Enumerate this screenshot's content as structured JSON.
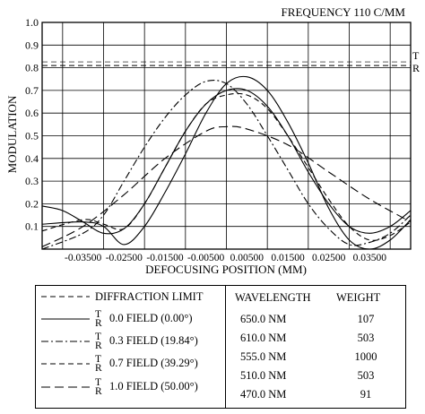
{
  "chart_data": {
    "type": "line",
    "title": "FREQUENCY 110 C/MM",
    "xlabel": "DEFOCUSING POSITION (MM)",
    "ylabel": "MODULATION",
    "xlim": [
      -0.045,
      0.045
    ],
    "ylim": [
      0,
      1.0
    ],
    "yticks": [
      "0.1",
      "0.2",
      "0.3",
      "0.4",
      "0.5",
      "0.6",
      "0.7",
      "0.8",
      "0.9",
      "1.0"
    ],
    "xticks": [
      "-0.03500",
      "-0.02500",
      "-0.01500",
      "-0.00500",
      "0.00500",
      "0.01500",
      "0.02500",
      "0.03500"
    ],
    "diffraction_limit": 0.81,
    "side_labels": [
      "T",
      "R"
    ],
    "series": [
      {
        "name": "0.0 FIELD (0.00°)",
        "style": "solid",
        "x": [
          -0.045,
          -0.035,
          -0.03,
          -0.025,
          -0.02,
          -0.015,
          -0.01,
          -0.005,
          0,
          0.005,
          0.01,
          0.015,
          0.02,
          0.025,
          0.03,
          0.035,
          0.04,
          0.045
        ],
        "y": [
          0.11,
          0.12,
          0.1,
          0.02,
          0.1,
          0.25,
          0.42,
          0.6,
          0.73,
          0.76,
          0.7,
          0.56,
          0.38,
          0.18,
          0.04,
          0.0,
          0.04,
          0.13
        ]
      },
      {
        "name": "0.0 FIELD (0.00°) R",
        "style": "solid",
        "x": [
          -0.045,
          -0.04,
          -0.035,
          -0.03,
          -0.025,
          -0.02,
          -0.015,
          -0.01,
          -0.005,
          0,
          0.005,
          0.01,
          0.015,
          0.02,
          0.025,
          0.03,
          0.035,
          0.04,
          0.045
        ],
        "y": [
          0.19,
          0.17,
          0.12,
          0.07,
          0.09,
          0.2,
          0.36,
          0.52,
          0.64,
          0.7,
          0.7,
          0.63,
          0.5,
          0.34,
          0.2,
          0.1,
          0.07,
          0.1,
          0.17
        ]
      },
      {
        "name": "0.3 FIELD (19.84°)",
        "style": "dashdot",
        "x": [
          -0.045,
          -0.035,
          -0.03,
          -0.025,
          -0.02,
          -0.015,
          -0.01,
          -0.005,
          0,
          0.005,
          0.01,
          0.015,
          0.02,
          0.025,
          0.03,
          0.035,
          0.04,
          0.045
        ],
        "y": [
          0.0,
          0.07,
          0.15,
          0.3,
          0.45,
          0.58,
          0.68,
          0.74,
          0.73,
          0.64,
          0.5,
          0.35,
          0.2,
          0.09,
          0.02,
          0.03,
          0.07,
          0.15
        ]
      },
      {
        "name": "0.7 FIELD (39.29°)",
        "style": "dashed",
        "x": [
          -0.045,
          -0.035,
          -0.03,
          -0.025,
          -0.02,
          -0.015,
          -0.01,
          -0.005,
          0,
          0.005,
          0.01,
          0.015,
          0.02,
          0.025,
          0.03,
          0.035,
          0.04,
          0.045
        ],
        "y": [
          0.08,
          0.13,
          0.11,
          0.09,
          0.2,
          0.36,
          0.52,
          0.64,
          0.68,
          0.68,
          0.62,
          0.5,
          0.36,
          0.22,
          0.1,
          0.04,
          0.06,
          0.12
        ]
      },
      {
        "name": "1.0 FIELD (50.00°)",
        "style": "longdash",
        "x": [
          -0.045,
          -0.035,
          -0.025,
          -0.015,
          -0.005,
          0.0,
          0.005,
          0.015,
          0.025,
          0.035,
          0.045
        ],
        "y": [
          0.01,
          0.1,
          0.24,
          0.4,
          0.52,
          0.54,
          0.53,
          0.46,
          0.34,
          0.22,
          0.12
        ]
      }
    ]
  },
  "legend": {
    "items": [
      {
        "label": "DIFFRACTION LIMIT",
        "tr": false,
        "style": "dashed"
      },
      {
        "label": "0.0 FIELD (0.00°)",
        "tr": true,
        "style": "solid"
      },
      {
        "label": "0.3 FIELD (19.84°)",
        "tr": true,
        "style": "dashdot"
      },
      {
        "label": "0.7 FIELD (39.29°)",
        "tr": true,
        "style": "dashed"
      },
      {
        "label": "1.0 FIELD (50.00°)",
        "tr": true,
        "style": "longdash"
      }
    ],
    "wavelength_header": "WAVELENGTH",
    "weight_header": "WEIGHT",
    "wavelengths": [
      "650.0 NM",
      "610.0 NM",
      "555.0 NM",
      "510.0 NM",
      "470.0 NM"
    ],
    "weights": [
      "107",
      "503",
      "1000",
      "503",
      "91"
    ],
    "t_letter": "T",
    "r_letter": "R"
  }
}
